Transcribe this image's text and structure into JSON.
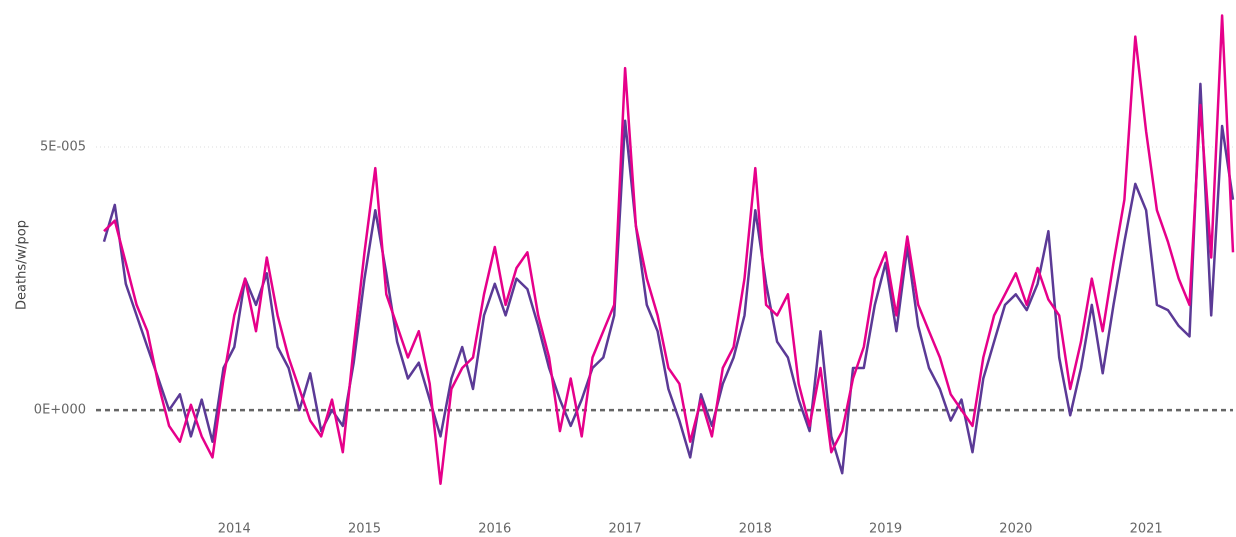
{
  "chart_data": {
    "type": "line",
    "y_label": "Deaths/w/pop",
    "x": [
      2013,
      2013.083,
      2013.167,
      2013.25,
      2013.333,
      2013.417,
      2013.5,
      2013.583,
      2013.667,
      2013.75,
      2013.833,
      2013.917,
      2014,
      2014.083,
      2014.167,
      2014.25,
      2014.333,
      2014.417,
      2014.5,
      2014.583,
      2014.667,
      2014.75,
      2014.833,
      2014.917,
      2015,
      2015.083,
      2015.167,
      2015.25,
      2015.333,
      2015.417,
      2015.5,
      2015.583,
      2015.667,
      2015.75,
      2015.833,
      2015.917,
      2016,
      2016.083,
      2016.167,
      2016.25,
      2016.333,
      2016.417,
      2016.5,
      2016.583,
      2016.667,
      2016.75,
      2016.833,
      2016.917,
      2017,
      2017.083,
      2017.167,
      2017.25,
      2017.333,
      2017.417,
      2017.5,
      2017.583,
      2017.667,
      2017.75,
      2017.833,
      2017.917,
      2018,
      2018.083,
      2018.167,
      2018.25,
      2018.333,
      2018.417,
      2018.5,
      2018.583,
      2018.667,
      2018.75,
      2018.833,
      2018.917,
      2019,
      2019.083,
      2019.167,
      2019.25,
      2019.333,
      2019.417,
      2019.5,
      2019.583,
      2019.667,
      2019.75,
      2019.833,
      2019.917,
      2020,
      2020.083,
      2020.167,
      2020.25,
      2020.333,
      2020.417,
      2020.5,
      2020.583,
      2020.667,
      2020.75,
      2020.833,
      2020.917,
      2021,
      2021.083,
      2021.167,
      2021.25,
      2021.333,
      2021.417,
      2021.5,
      2021.583,
      2021.667
    ],
    "series": [
      {
        "color": "#5b3a96",
        "values": [
          3.2e-05,
          3.9e-05,
          2.4e-05,
          1.8e-05,
          1.2e-05,
          6e-06,
          0.0,
          3e-06,
          -5e-06,
          2e-06,
          -6e-06,
          8e-06,
          1.2e-05,
          2.5e-05,
          2e-05,
          2.6e-05,
          1.2e-05,
          8e-06,
          0.0,
          7e-06,
          -4e-06,
          0.0,
          -3e-06,
          9e-06,
          2.5e-05,
          3.8e-05,
          2.6e-05,
          1.3e-05,
          6e-06,
          9e-06,
          2e-06,
          -5e-06,
          6e-06,
          1.2e-05,
          4e-06,
          1.8e-05,
          2.4e-05,
          1.8e-05,
          2.5e-05,
          2.3e-05,
          1.6e-05,
          8e-06,
          2e-06,
          -3e-06,
          2e-06,
          8e-06,
          1e-05,
          1.8e-05,
          5.5e-05,
          3.5e-05,
          2e-05,
          1.5e-05,
          4e-06,
          -2e-06,
          -9e-06,
          3e-06,
          -3e-06,
          5e-06,
          1e-05,
          1.8e-05,
          3.8e-05,
          2.4e-05,
          1.3e-05,
          1e-05,
          2e-06,
          -4e-06,
          1.5e-05,
          -5e-06,
          -1.2e-05,
          8e-06,
          8e-06,
          2e-05,
          2.8e-05,
          1.5e-05,
          3.1e-05,
          1.6e-05,
          8e-06,
          4e-06,
          -2e-06,
          2e-06,
          -8e-06,
          6e-06,
          1.3e-05,
          2e-05,
          2.2e-05,
          1.9e-05,
          2.4e-05,
          3.4e-05,
          1e-05,
          -1e-06,
          8e-06,
          2e-05,
          7e-06,
          2e-05,
          3.2e-05,
          4.3e-05,
          3.8e-05,
          2e-05,
          1.9e-05,
          1.6e-05,
          1.4e-05,
          6.2e-05,
          1.8e-05,
          5.4e-05,
          4e-05
        ]
      },
      {
        "color": "#e6008a",
        "values": [
          3.4e-05,
          3.6e-05,
          2.8e-05,
          2e-05,
          1.5e-05,
          5e-06,
          -3e-06,
          -6e-06,
          1e-06,
          -5e-06,
          -9e-06,
          6e-06,
          1.8e-05,
          2.5e-05,
          1.5e-05,
          2.9e-05,
          1.8e-05,
          1e-05,
          4e-06,
          -2e-06,
          -5e-06,
          2e-06,
          -8e-06,
          1.2e-05,
          3e-05,
          4.6e-05,
          2.2e-05,
          1.6e-05,
          1e-05,
          1.5e-05,
          5e-06,
          -1.4e-05,
          4e-06,
          8e-06,
          1e-05,
          2.2e-05,
          3.1e-05,
          2e-05,
          2.7e-05,
          3e-05,
          1.8e-05,
          1e-05,
          -4e-06,
          6e-06,
          -5e-06,
          1e-05,
          1.5e-05,
          2e-05,
          6.5e-05,
          3.5e-05,
          2.5e-05,
          1.8e-05,
          8e-06,
          5e-06,
          -6e-06,
          2e-06,
          -5e-06,
          8e-06,
          1.2e-05,
          2.5e-05,
          4.6e-05,
          2e-05,
          1.8e-05,
          2.2e-05,
          5e-06,
          -3e-06,
          8e-06,
          -8e-06,
          -4e-06,
          6e-06,
          1.2e-05,
          2.5e-05,
          3e-05,
          1.8e-05,
          3.3e-05,
          2e-05,
          1.5e-05,
          1e-05,
          3e-06,
          0.0,
          -3e-06,
          1e-05,
          1.8e-05,
          2.2e-05,
          2.6e-05,
          2e-05,
          2.7e-05,
          2.1e-05,
          1.8e-05,
          4e-06,
          1.3e-05,
          2.5e-05,
          1.5e-05,
          2.8e-05,
          4e-05,
          7.1e-05,
          5.3e-05,
          3.8e-05,
          3.2e-05,
          2.5e-05,
          2e-05,
          5.8e-05,
          2.9e-05,
          7.5e-05,
          3e-05
        ]
      }
    ],
    "xlim": [
      2013,
      2021.667
    ],
    "xticks": [
      2014,
      2015,
      2016,
      2017,
      2018,
      2019,
      2020,
      2021
    ],
    "ylim": [
      -1.5e-05,
      7.7e-05
    ],
    "yticks": [
      {
        "value": 0,
        "label": "0E+000"
      },
      {
        "value": 5e-05,
        "label": "5E-005"
      }
    ],
    "grid": true
  }
}
